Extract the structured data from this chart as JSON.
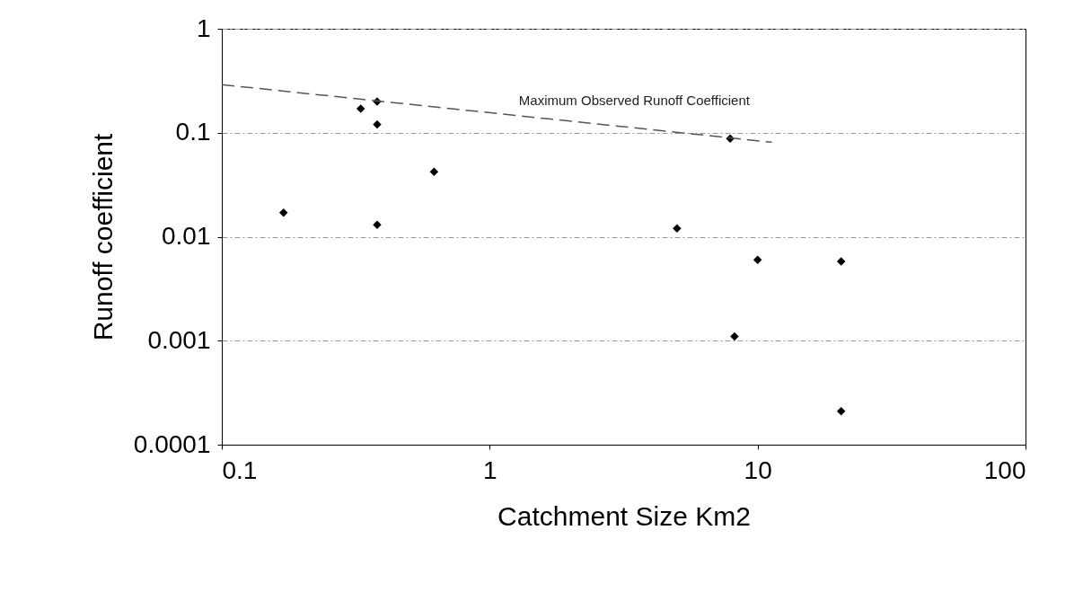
{
  "chart_data": {
    "type": "scatter",
    "xlabel": "Catchment Size Km2",
    "ylabel": "Runoff coefficient",
    "log": "xy",
    "xlim": [
      0.1,
      100
    ],
    "ylim": [
      0.0001,
      1
    ],
    "xticks": [
      0.1,
      1,
      10,
      100
    ],
    "yticks": [
      0.0001,
      0.001,
      0.01,
      0.1,
      1
    ],
    "grid": "y",
    "marker": "diamond",
    "legend": false,
    "series": [
      {
        "color": "#000000",
        "x": [
          0.17,
          0.33,
          0.38,
          0.38,
          0.38,
          0.62,
          5,
          7.9,
          8.2,
          10,
          20.5,
          20.5
        ],
        "values": [
          0.017,
          0.17,
          0.2,
          0.12,
          0.013,
          0.042,
          0.012,
          0.088,
          0.0011,
          0.006,
          0.0058,
          0.00021
        ]
      },
      {
        "type": "line",
        "name": "Maximum Observed Runoff Coefficient",
        "color": "#555555",
        "line_style": "dashed",
        "marker": "none",
        "x": [
          0.1,
          11.3
        ],
        "values": [
          0.29,
          0.081
        ]
      }
    ]
  }
}
